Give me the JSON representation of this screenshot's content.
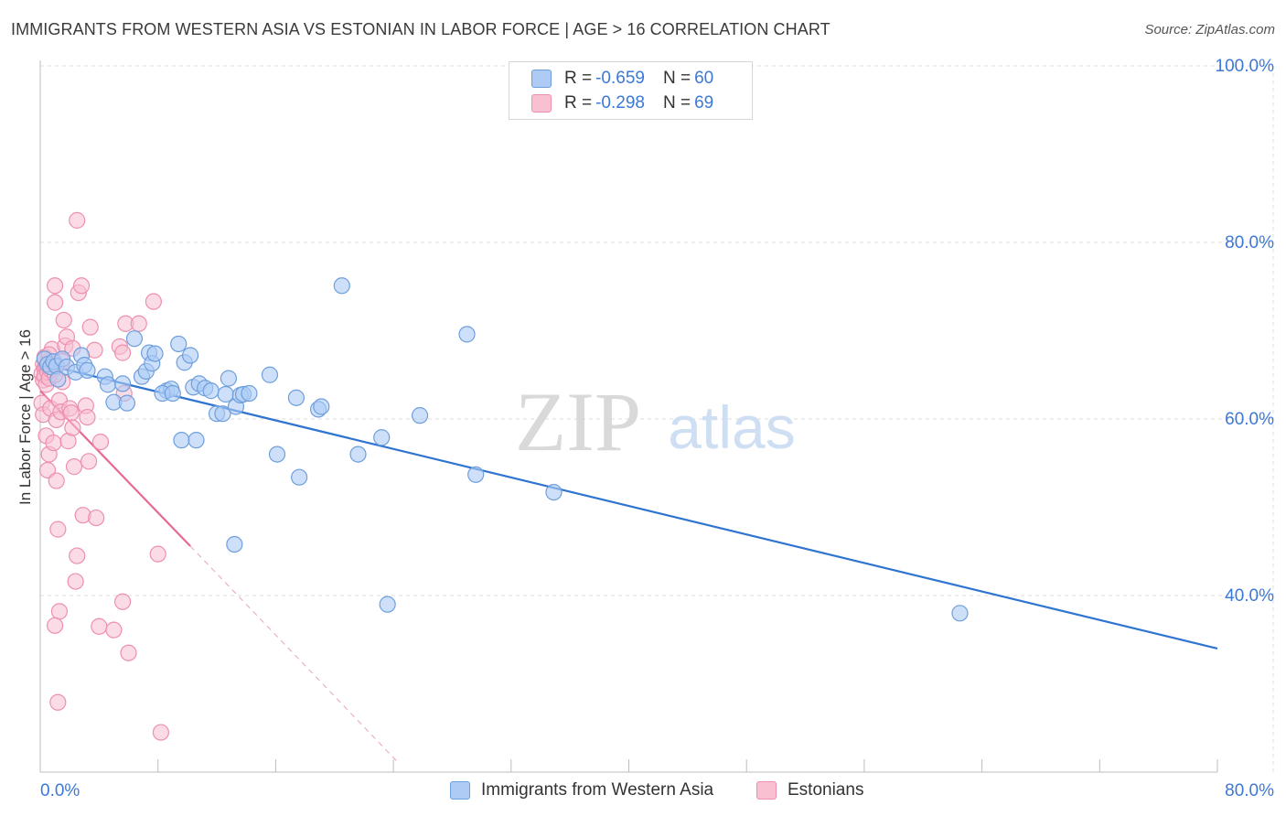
{
  "title": "IMMIGRANTS FROM WESTERN ASIA VS ESTONIAN IN LABOR FORCE | AGE > 16 CORRELATION CHART",
  "source": "Source: ZipAtlas.com",
  "watermark": {
    "zip": "ZIP",
    "atlas": "atlas"
  },
  "legend": {
    "rows": [
      {
        "r_label": "R = ",
        "r_value": "-0.659",
        "n_label": "N = ",
        "n_value": "60"
      },
      {
        "r_label": "R = ",
        "r_value": "-0.298",
        "n_label": "N = ",
        "n_value": "69"
      }
    ]
  },
  "colors": {
    "blue_fill": "#aecbf5",
    "blue_stroke": "#6e9fdc",
    "blue_line": "#2f74d0",
    "pink_fill": "#f8c0d1",
    "pink_stroke": "#ee8fae",
    "pink_line": "#e8688f",
    "grid": "#dcdcdc",
    "tick_label": "#3b78d8"
  },
  "chart_data": {
    "type": "scatter",
    "title": "IMMIGRANTS FROM WESTERN ASIA VS ESTONIAN IN LABOR FORCE | AGE > 16 CORRELATION CHART",
    "xlabel": "",
    "ylabel": "In Labor Force | Age > 16",
    "xlim": [
      0,
      80
    ],
    "ylim": [
      20,
      100
    ],
    "x_tick_labels": [
      "0.0%",
      "80.0%"
    ],
    "y_ticks": [
      40,
      60,
      80,
      100
    ],
    "y_tick_labels": [
      "40.0%",
      "60.0%",
      "80.0%",
      "100.0%"
    ],
    "grid": true,
    "legend_position": "top-center",
    "series": [
      {
        "name": "Immigrants from Western Asia",
        "color": "#6e9fdc",
        "points": [
          [
            0.3,
            66.8
          ],
          [
            0.5,
            66.2
          ],
          [
            0.7,
            65.9
          ],
          [
            0.9,
            66.5
          ],
          [
            1.1,
            66.0
          ],
          [
            1.5,
            66.8
          ],
          [
            1.8,
            65.9
          ],
          [
            2.4,
            65.3
          ],
          [
            2.8,
            67.2
          ],
          [
            3.0,
            66.1
          ],
          [
            3.2,
            65.5
          ],
          [
            4.4,
            64.8
          ],
          [
            4.6,
            63.9
          ],
          [
            5.0,
            61.9
          ],
          [
            5.6,
            64.0
          ],
          [
            5.9,
            61.8
          ],
          [
            6.4,
            69.1
          ],
          [
            6.9,
            64.8
          ],
          [
            7.2,
            65.4
          ],
          [
            7.4,
            67.5
          ],
          [
            7.6,
            66.3
          ],
          [
            7.8,
            67.4
          ],
          [
            8.6,
            63.2
          ],
          [
            8.9,
            63.4
          ],
          [
            8.3,
            62.9
          ],
          [
            9.0,
            62.9
          ],
          [
            9.4,
            68.5
          ],
          [
            9.6,
            57.6
          ],
          [
            9.8,
            66.4
          ],
          [
            10.4,
            63.6
          ],
          [
            10.2,
            67.2
          ],
          [
            10.6,
            57.6
          ],
          [
            10.8,
            64.0
          ],
          [
            11.2,
            63.5
          ],
          [
            11.6,
            63.2
          ],
          [
            12.0,
            60.6
          ],
          [
            12.4,
            60.6
          ],
          [
            12.6,
            62.8
          ],
          [
            12.8,
            64.6
          ],
          [
            13.3,
            61.4
          ],
          [
            13.6,
            62.7
          ],
          [
            13.8,
            62.8
          ],
          [
            14.2,
            62.9
          ],
          [
            13.2,
            45.8
          ],
          [
            15.6,
            65.0
          ],
          [
            16.1,
            56.0
          ],
          [
            17.4,
            62.4
          ],
          [
            17.6,
            53.4
          ],
          [
            18.9,
            61.1
          ],
          [
            19.1,
            61.4
          ],
          [
            20.5,
            75.1
          ],
          [
            21.6,
            56.0
          ],
          [
            23.2,
            57.9
          ],
          [
            23.6,
            39.0
          ],
          [
            25.8,
            60.4
          ],
          [
            29.0,
            69.6
          ],
          [
            29.6,
            53.7
          ],
          [
            34.9,
            51.7
          ],
          [
            62.5,
            38.0
          ],
          [
            1.2,
            64.5
          ]
        ],
        "trend": {
          "x": [
            0,
            80
          ],
          "y": [
            66.3,
            34.0
          ]
        }
      },
      {
        "name": "Estonians",
        "color": "#ee8fae",
        "points": [
          [
            0.1,
            65.1
          ],
          [
            0.2,
            64.4
          ],
          [
            0.2,
            66.2
          ],
          [
            0.3,
            65.7
          ],
          [
            0.3,
            64.9
          ],
          [
            0.4,
            66.0
          ],
          [
            0.4,
            63.9
          ],
          [
            0.5,
            65.3
          ],
          [
            0.6,
            66.6
          ],
          [
            0.6,
            64.6
          ],
          [
            0.1,
            61.8
          ],
          [
            0.2,
            60.5
          ],
          [
            0.4,
            58.1
          ],
          [
            0.5,
            54.2
          ],
          [
            0.6,
            56.0
          ],
          [
            0.7,
            61.2
          ],
          [
            0.8,
            67.9
          ],
          [
            0.9,
            57.3
          ],
          [
            1.0,
            73.2
          ],
          [
            1.0,
            75.1
          ],
          [
            1.1,
            59.9
          ],
          [
            1.1,
            53.0
          ],
          [
            1.2,
            47.5
          ],
          [
            1.3,
            38.2
          ],
          [
            1.2,
            27.9
          ],
          [
            1.0,
            36.6
          ],
          [
            1.3,
            62.1
          ],
          [
            1.4,
            60.8
          ],
          [
            1.5,
            64.2
          ],
          [
            1.6,
            71.2
          ],
          [
            1.7,
            68.3
          ],
          [
            1.8,
            69.3
          ],
          [
            1.9,
            57.5
          ],
          [
            2.0,
            61.2
          ],
          [
            2.1,
            60.7
          ],
          [
            2.2,
            59.0
          ],
          [
            2.3,
            54.6
          ],
          [
            2.4,
            41.6
          ],
          [
            2.5,
            44.5
          ],
          [
            2.5,
            82.5
          ],
          [
            2.6,
            74.3
          ],
          [
            2.8,
            75.1
          ],
          [
            2.9,
            49.1
          ],
          [
            3.1,
            61.5
          ],
          [
            3.2,
            60.2
          ],
          [
            3.3,
            55.2
          ],
          [
            3.4,
            70.4
          ],
          [
            3.7,
            67.8
          ],
          [
            3.8,
            48.8
          ],
          [
            4.1,
            57.4
          ],
          [
            4.0,
            36.5
          ],
          [
            5.0,
            36.1
          ],
          [
            5.4,
            68.2
          ],
          [
            5.6,
            67.5
          ],
          [
            5.7,
            62.9
          ],
          [
            5.6,
            39.3
          ],
          [
            5.8,
            70.8
          ],
          [
            6.0,
            33.5
          ],
          [
            6.7,
            70.8
          ],
          [
            7.7,
            73.3
          ],
          [
            8.0,
            44.7
          ],
          [
            8.2,
            24.5
          ],
          [
            0.7,
            65.6
          ],
          [
            0.9,
            66.2
          ],
          [
            1.0,
            65.0
          ],
          [
            0.3,
            67.0
          ],
          [
            0.6,
            67.3
          ],
          [
            1.5,
            66.5
          ],
          [
            2.2,
            68.0
          ]
        ],
        "trend": {
          "x": [
            0,
            10.2
          ],
          "y": [
            63.2,
            45.6
          ]
        },
        "trend_extension": {
          "x": [
            10.2,
            24.2
          ],
          "y": [
            45.6,
            21.3
          ]
        }
      }
    ]
  }
}
